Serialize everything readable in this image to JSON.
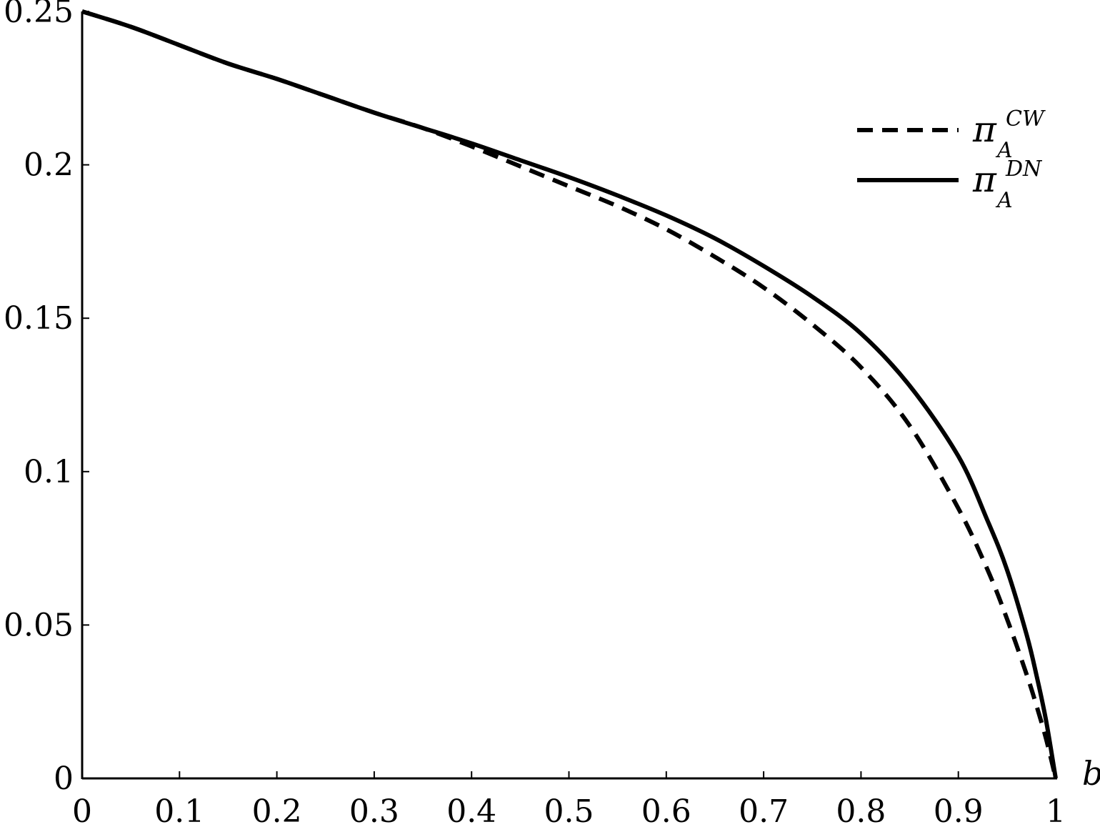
{
  "chart_data": {
    "type": "line",
    "title": "",
    "xlabel": "b",
    "ylabel": "",
    "xlim": [
      0,
      1
    ],
    "ylim": [
      0,
      0.25
    ],
    "grid": false,
    "legend_position": "top-right",
    "x_ticks": [
      "0",
      "0.1",
      "0.2",
      "0.3",
      "0.4",
      "0.5",
      "0.6",
      "0.7",
      "0.8",
      "0.9",
      "1"
    ],
    "y_ticks": [
      "0",
      "0.05",
      "0.1",
      "0.15",
      "0.2",
      "0.25"
    ],
    "x": [
      0,
      0.05,
      0.1,
      0.15,
      0.2,
      0.25,
      0.3,
      0.35,
      0.4,
      0.45,
      0.5,
      0.55,
      0.6,
      0.65,
      0.7,
      0.75,
      0.8,
      0.85,
      0.9,
      0.93,
      0.95,
      0.97,
      0.98,
      0.99,
      1.0
    ],
    "series": [
      {
        "name": "π_A^CW",
        "name_main": "π",
        "name_sub": "A",
        "name_sup": "CW",
        "style": "dashed",
        "values": [
          0.25,
          0.245,
          0.239,
          0.233,
          0.228,
          0.2225,
          0.217,
          0.212,
          0.206,
          0.1995,
          0.193,
          0.1865,
          0.179,
          0.17,
          0.16,
          0.148,
          0.134,
          0.115,
          0.088,
          0.068,
          0.052,
          0.034,
          0.024,
          0.013,
          0.0
        ]
      },
      {
        "name": "π_A^DN",
        "name_main": "π",
        "name_sub": "A",
        "name_sup": "DN",
        "style": "solid",
        "values": [
          0.25,
          0.245,
          0.239,
          0.233,
          0.228,
          0.2225,
          0.217,
          0.212,
          0.207,
          0.2015,
          0.196,
          0.19,
          0.1835,
          0.176,
          0.167,
          0.157,
          0.145,
          0.128,
          0.105,
          0.084,
          0.068,
          0.047,
          0.034,
          0.019,
          0.0
        ]
      }
    ]
  }
}
